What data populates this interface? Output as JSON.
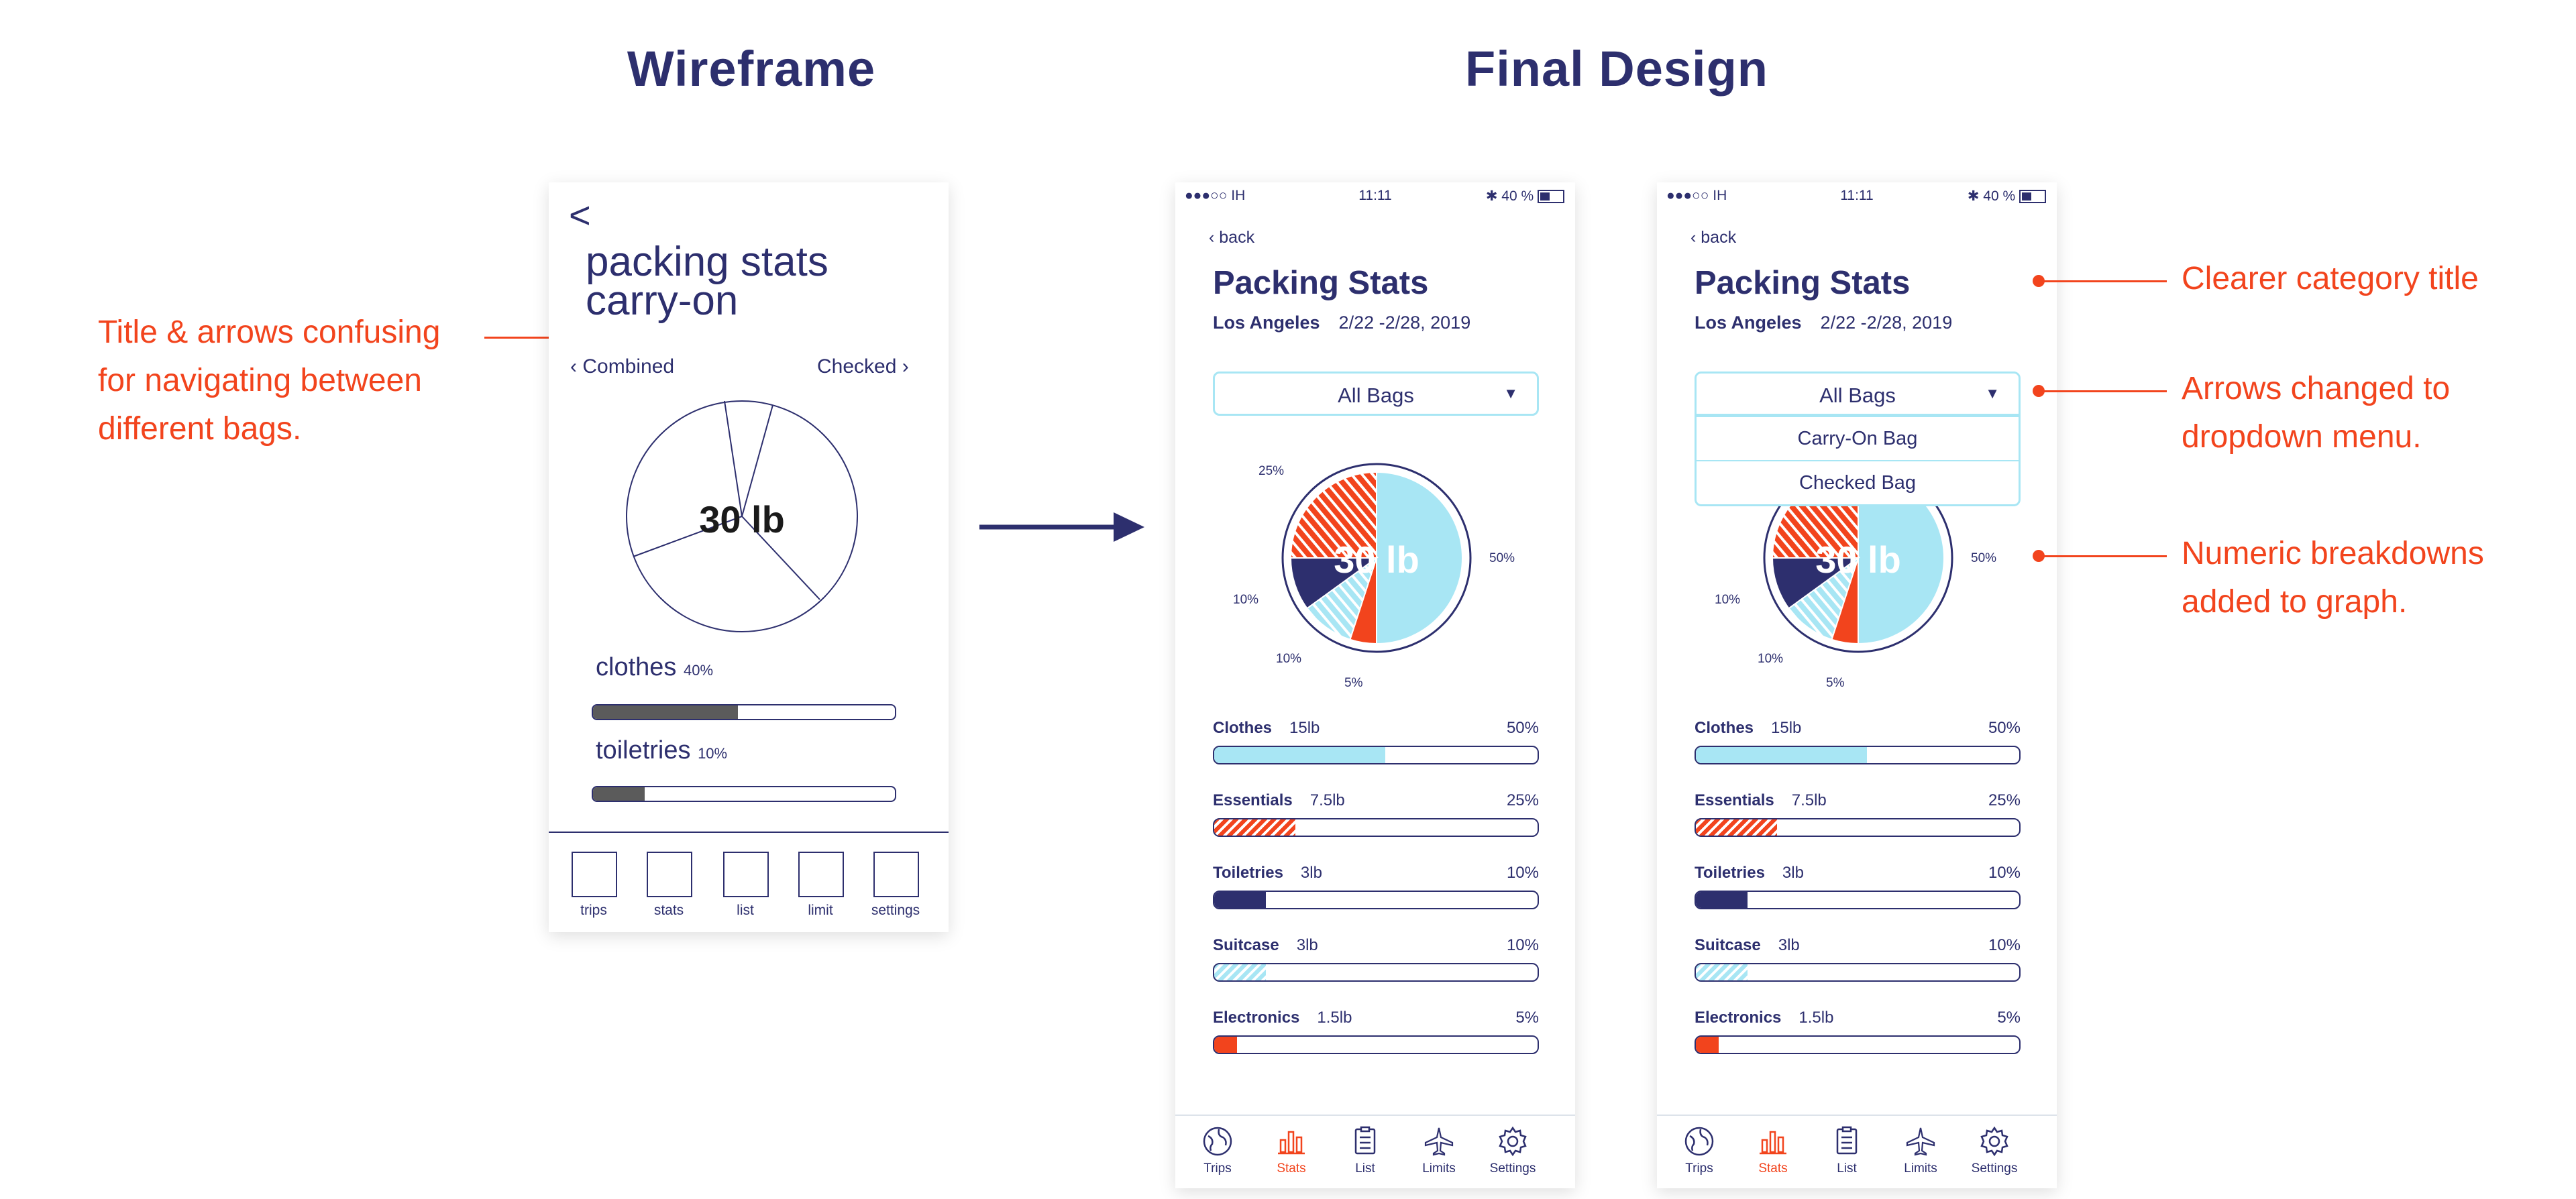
{
  "headings": {
    "left": "Wireframe",
    "right": "Final Design"
  },
  "wireframe": {
    "back": "<",
    "title_line1": "packing stats",
    "title_line2": "carry-on",
    "nav_left": "Combined",
    "nav_right": "Checked",
    "total": "30 lb",
    "categories": [
      {
        "name": "clothes",
        "pct": "40%",
        "fill": 0.48
      },
      {
        "name": "toiletries",
        "pct": "10%",
        "fill": 0.17
      }
    ],
    "tabs": [
      "trips",
      "stats",
      "list",
      "limit",
      "settings"
    ]
  },
  "final": {
    "status": {
      "signal": "●●●○○ IH",
      "time": "11:11",
      "battery": "40 %"
    },
    "back": "back",
    "title": "Packing Stats",
    "location": "Los Angeles",
    "dates": "2/22 -2/28, 2019",
    "dropdown": "All Bags",
    "dropdown_options": [
      "Carry-On Bag",
      "Checked Bag"
    ],
    "total": "30 lb",
    "pie_labels": {
      "p25": "25%",
      "p50": "50%",
      "p10a": "10%",
      "p10b": "10%",
      "p5": "5%"
    },
    "categories": [
      {
        "name": "Clothes",
        "weight": "15lb",
        "pct": "50%",
        "fill": 0.53
      },
      {
        "name": "Essentials",
        "weight": "7.5lb",
        "pct": "25%",
        "fill": 0.25
      },
      {
        "name": "Toiletries",
        "weight": "3lb",
        "pct": "10%",
        "fill": 0.16
      },
      {
        "name": "Suitcase",
        "weight": "3lb",
        "pct": "10%",
        "fill": 0.16
      },
      {
        "name": "Electronics",
        "weight": "1.5lb",
        "pct": "5%",
        "fill": 0.07
      }
    ],
    "tabs": [
      "Trips",
      "Stats",
      "List",
      "Limits",
      "Settings"
    ]
  },
  "annotations": {
    "left_note": [
      "Title & arrows confusing",
      "for navigating between",
      "different bags."
    ],
    "note1": [
      "Clearer category title"
    ],
    "note2": [
      "Arrows changed to",
      "dropdown menu."
    ],
    "note3": [
      "Numeric breakdowns",
      "added to graph."
    ]
  },
  "colors": {
    "navy": "#2d2f6e",
    "accent": "#f2441d",
    "light_blue": "#a8e6f4",
    "grey_fill": "#5b5b5b"
  }
}
